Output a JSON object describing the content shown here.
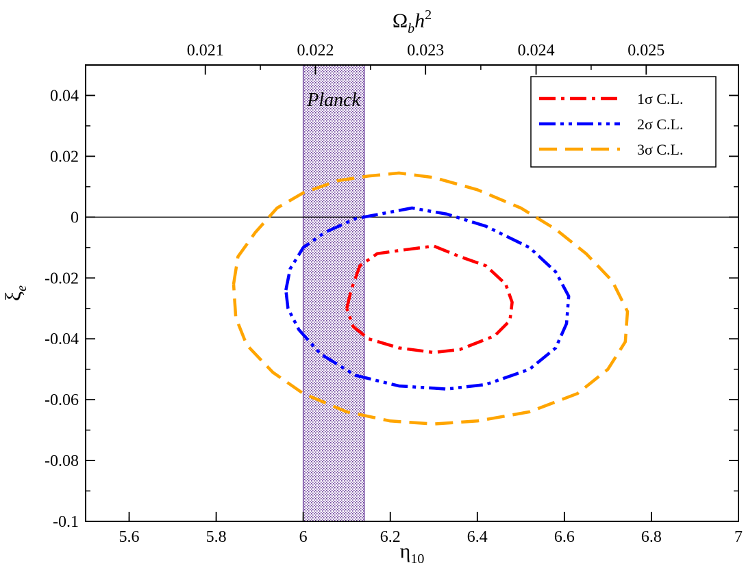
{
  "chart_data": {
    "type": "line",
    "title": "",
    "xlabel": "η",
    "xlabel_sub": "10",
    "ylabel": "ξ",
    "ylabel_sub": "e",
    "top_xlabel": {
      "base": "Ω",
      "sub": "b",
      "mid": "h",
      "sup": "2"
    },
    "xlim": [
      5.5,
      7.0
    ],
    "ylim": [
      -0.1,
      0.05
    ],
    "x_ticks": [
      5.6,
      5.8,
      6.0,
      6.2,
      6.4,
      6.6,
      6.8,
      7.0
    ],
    "x_tick_labels": [
      "5.6",
      "5.8",
      "6",
      "6.2",
      "6.4",
      "6.6",
      "6.8",
      "7"
    ],
    "y_ticks": [
      -0.1,
      -0.08,
      -0.06,
      -0.04,
      -0.02,
      0.0,
      0.02,
      0.04
    ],
    "y_tick_labels": [
      "-0.1",
      "-0.08",
      "-0.06",
      "-0.04",
      "-0.02",
      "0",
      "0.02",
      "0.04"
    ],
    "top_ticks": [
      {
        "label": "0.021",
        "eta": 5.775
      },
      {
        "label": "0.022",
        "eta": 6.028
      },
      {
        "label": "0.023",
        "eta": 6.281
      },
      {
        "label": "0.024",
        "eta": 6.535
      },
      {
        "label": "0.025",
        "eta": 6.788
      }
    ],
    "band": {
      "label": "Planck",
      "x_range": [
        6.0,
        6.14
      ],
      "color": "#6a3d9a"
    },
    "hline_y": 0,
    "legend_position": "top-right",
    "series": [
      {
        "name": "1σ C.L.",
        "color": "#ff0000",
        "dash": "dash-dot",
        "points": [
          [
            6.1,
            -0.03
          ],
          [
            6.11,
            -0.024
          ],
          [
            6.13,
            -0.016
          ],
          [
            6.17,
            -0.012
          ],
          [
            6.22,
            -0.011
          ],
          [
            6.3,
            -0.0095
          ],
          [
            6.36,
            -0.013
          ],
          [
            6.42,
            -0.016
          ],
          [
            6.465,
            -0.022
          ],
          [
            6.48,
            -0.028
          ],
          [
            6.475,
            -0.034
          ],
          [
            6.44,
            -0.039
          ],
          [
            6.36,
            -0.0435
          ],
          [
            6.3,
            -0.0445
          ],
          [
            6.22,
            -0.043
          ],
          [
            6.15,
            -0.04
          ],
          [
            6.115,
            -0.036
          ],
          [
            6.1,
            -0.03
          ]
        ]
      },
      {
        "name": "2σ C.L.",
        "color": "#0000ff",
        "dash": "dash-dot-dot",
        "points": [
          [
            5.96,
            -0.024
          ],
          [
            5.97,
            -0.017
          ],
          [
            6.0,
            -0.01
          ],
          [
            6.05,
            -0.005
          ],
          [
            6.12,
            -0.0005
          ],
          [
            6.25,
            0.003
          ],
          [
            6.33,
            0.001
          ],
          [
            6.42,
            -0.003
          ],
          [
            6.52,
            -0.01
          ],
          [
            6.58,
            -0.018
          ],
          [
            6.61,
            -0.026
          ],
          [
            6.605,
            -0.035
          ],
          [
            6.58,
            -0.043
          ],
          [
            6.52,
            -0.05
          ],
          [
            6.42,
            -0.055
          ],
          [
            6.33,
            -0.0565
          ],
          [
            6.22,
            -0.0555
          ],
          [
            6.12,
            -0.052
          ],
          [
            6.04,
            -0.045
          ],
          [
            5.99,
            -0.037
          ],
          [
            5.965,
            -0.03
          ],
          [
            5.96,
            -0.024
          ]
        ]
      },
      {
        "name": "3σ C.L.",
        "color": "#ffa500",
        "dash": "dashed",
        "points": [
          [
            5.84,
            -0.022
          ],
          [
            5.85,
            -0.013
          ],
          [
            5.89,
            -0.005
          ],
          [
            5.94,
            0.003
          ],
          [
            6.0,
            0.008
          ],
          [
            6.08,
            0.012
          ],
          [
            6.15,
            0.0135
          ],
          [
            6.22,
            0.0145
          ],
          [
            6.3,
            0.013
          ],
          [
            6.4,
            0.009
          ],
          [
            6.5,
            0.003
          ],
          [
            6.58,
            -0.004
          ],
          [
            6.65,
            -0.012
          ],
          [
            6.71,
            -0.021
          ],
          [
            6.745,
            -0.031
          ],
          [
            6.74,
            -0.041
          ],
          [
            6.7,
            -0.05
          ],
          [
            6.63,
            -0.058
          ],
          [
            6.52,
            -0.064
          ],
          [
            6.4,
            -0.067
          ],
          [
            6.3,
            -0.068
          ],
          [
            6.2,
            -0.067
          ],
          [
            6.1,
            -0.064
          ],
          [
            6.0,
            -0.058
          ],
          [
            5.93,
            -0.051
          ],
          [
            5.87,
            -0.042
          ],
          [
            5.845,
            -0.033
          ],
          [
            5.84,
            -0.022
          ]
        ]
      }
    ]
  }
}
